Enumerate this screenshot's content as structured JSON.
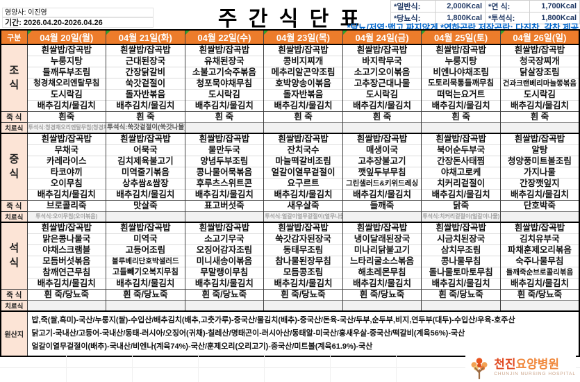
{
  "title": "주 간 식 단 표",
  "meta": {
    "nutritionist": "영양사: 이진영",
    "period": "기간: 2026.04.20-2026.04.26"
  },
  "calories": {
    "row1": {
      "l1": "*일반식:",
      "v1": "2,000Kcal",
      "l2": "*연  식:",
      "v2": "1,700Kcal"
    },
    "row2": {
      "l1": "*당뇨식:",
      "v1": "1,800Kcal",
      "l2": "*투석식:",
      "v2": "1,800Kcal"
    }
  },
  "note": "*당뇨/저염:맵고,짜지않게  *연하곤란,저작곤란: 다진찬, 갈찬 제공",
  "table": {
    "corner_label": "구분",
    "day_headers": [
      "04월 20일(월)",
      "04월 21일(화)",
      "04월 22일(수)",
      "04월 23일(목)",
      "04월 24일(금)",
      "04월 25일(토)",
      "04월 26일(일)"
    ],
    "sections": [
      {
        "id": "breakfast",
        "label": "조식",
        "days": [
          [
            "흰쌀밥/잡곡밥",
            "누룽지탕",
            "들깨두부조림",
            "청경채오리엔탈무침",
            "도시락김",
            "배추김치/물김치"
          ],
          [
            "흰쌀밥/잡곡밥",
            "근대된장국",
            "간장닭갈비",
            "쑥갓겉절이",
            "돌자반볶음",
            "배추김치/물김치"
          ],
          [
            "흰쌀밥/잡곡밥",
            "유채된장국",
            "소불고기숙주볶음",
            "청포묵야채무침",
            "도시락김",
            "배추김치/물김치"
          ],
          [
            "흰쌀밥/잡곡밥",
            "콩비지찌개",
            "메추리알곤약조림",
            "호박양송이볶음",
            "돌자반볶음",
            "배추김치/물김치"
          ],
          [
            "흰쌀밥/잡곡밥",
            "바지락무국",
            "소고기오이볶음",
            "고추장근대나물",
            "도시락김",
            "배추김치/물김치"
          ],
          [
            "흰쌀밥/잡곡밥",
            "누룽지탕",
            "비엔나야채조림",
            "도토리묵통들깨무침",
            "떠먹는요거트",
            "배추김치/물김치"
          ],
          [
            "흰쌀밥/잡곡밥",
            "청국장찌개",
            "닭살장조림",
            "건과크랜베리마늘쫑볶음",
            "도시락김",
            "배추김치/물김치"
          ]
        ],
        "porridge_label": "죽 식",
        "porridge": [
          "흰죽",
          "흰 죽",
          "흰 죽",
          "흰 죽",
          "흰 죽",
          "흰 죽",
          "흰 죽"
        ],
        "treatment_label": "치료식",
        "treatments": [
          {
            "text": "투석식:청경채오리엔탈무침(청경채나물)",
            "strong": false
          },
          {
            "text": "투석식:쑥갓겉절이(쑥갓나물)",
            "strong": true
          },
          {
            "text": "",
            "strong": false
          },
          {
            "text": "",
            "strong": false
          },
          {
            "text": "",
            "strong": false
          },
          {
            "text": "",
            "strong": false
          },
          {
            "text": "",
            "strong": false
          }
        ]
      },
      {
        "id": "lunch",
        "label": "중식",
        "days": [
          [
            "흰쌀밥/잡곡밥",
            "무채국",
            "카레라이스",
            "타코야끼",
            "오이무침",
            "배추김치/물김치"
          ],
          [
            "흰쌀밥/잡곡밥",
            "어묵국",
            "김치제육불고기",
            "미역줄기볶음",
            "상추쌈&쌈장",
            "배추김치/물김치"
          ],
          [
            "흰쌀밥/잡곡밥",
            "물만두국",
            "양념두부조림",
            "콩나물어묵볶음",
            "후루츠스위트콘",
            "배추김치/물김치"
          ],
          [
            "흰쌀밥/잡곡밥",
            "잔치국수",
            "마늘떡갈비조림",
            "얼갈이열무겉절이",
            "요구르트",
            "배추김치/물김치"
          ],
          [
            "흰쌀밥/잡곡밥",
            "매생이국",
            "고추장불고기",
            "깻잎두부무침",
            "그린샐러드&키위드레싱",
            "배추김치/물김치"
          ],
          [
            "흰쌀밥/잡곡밥",
            "북어순두부국",
            "간장돈사태찜",
            "야채고로케",
            "치커리겉절이",
            "배추김치/물김치"
          ],
          [
            "흰쌀밥/잡곡밥",
            "알탕",
            "청양풍미트볼조림",
            "가지나물",
            "간장깻잎지",
            "배추김치/물김치"
          ]
        ],
        "porridge_label": "죽 식",
        "porridge": [
          "브로콜리죽",
          "맛살죽",
          "표고버섯죽",
          "새우살죽",
          "들깨죽",
          "닭죽",
          "단호박죽"
        ],
        "treatment_label": "치료식",
        "treatments": [
          {
            "text": "투석식:오이무침(오이볶음)",
            "strong": false
          },
          {
            "text": "",
            "strong": false
          },
          {
            "text": "",
            "strong": false
          },
          {
            "text": "투석식:얼갈이열무겉절이(열무나물)",
            "strong": false
          },
          {
            "text": "",
            "strong": false
          },
          {
            "text": "투석식:치커리겉절이(얼갈이나물)",
            "strong": false
          },
          {
            "text": "",
            "strong": false
          }
        ]
      },
      {
        "id": "dinner",
        "label": "석식",
        "days": [
          [
            "흰쌀밥/잡곡밥",
            "맑은콩나물국",
            "야채스크램블",
            "모듬버섯볶음",
            "참깨연근무침",
            "배추김치/물김치"
          ],
          [
            "흰쌀밥/잡곡밥",
            "미역국",
            "고등어조림",
            "블루베리단호박샐러드",
            "고들빼기오복지무침",
            "배추김치/물김치"
          ],
          [
            "흰쌀밥/잡곡밥",
            "소고기무국",
            "오징어감자조림",
            "미니새송이볶음",
            "무말랭이무침",
            "배추김치/물김치"
          ],
          [
            "흰쌀밥/잡곡밥",
            "쑥갓감자된장국",
            "동태무조림",
            "참나물된장무침",
            "모듬콩조림",
            "배추김치/물김치"
          ],
          [
            "흰쌀밥/잡곡밥",
            "냉이달래된장국",
            "미나리닭불고기",
            "느타리굴소스볶음",
            "해초레몬무침",
            "배추김치/물김치"
          ],
          [
            "흰쌀밥/잡곡밥",
            "시금치된장국",
            "삼치무조림",
            "콩나물무침",
            "돌나물토마토무침",
            "배추김치/물김치"
          ],
          [
            "흰쌀밥/잡곡밥",
            "김치유부국",
            "파채훈제오리볶음",
            "숙주나물무침",
            "들깨죽순브로콜리볶음",
            "배추김치/물김치"
          ]
        ],
        "porridge_label": "죽 식",
        "porridge": [
          "흰 죽/당뇨죽",
          "흰 죽/당뇨죽",
          "흰 죽/당뇨죽",
          "흰 죽/당뇨죽",
          "흰 죽/당뇨죽",
          "흰 죽/당뇨죽",
          "흰 죽/당뇨죽"
        ],
        "treatment_label": "치료식",
        "treatments": [
          {
            "text": "",
            "strong": false
          },
          {
            "text": "",
            "strong": false
          },
          {
            "text": "",
            "strong": false
          },
          {
            "text": "",
            "strong": false
          },
          {
            "text": "",
            "strong": false
          },
          {
            "text": "",
            "strong": false
          },
          {
            "text": "",
            "strong": false
          }
        ]
      }
    ],
    "origin": {
      "label": "원산지",
      "lines": [
        "밥,죽(쌀,흑미)-국산/누룽지(쌀)-수입산/배추김치(배추,고춧가루)-중국산/물김치(배추)-중국산/돈육-국산/두부,순두부,비지,연두부(대두)-수입산/우육-호주산",
        "닭고기-국내산/고등어-국내산/동태-러시아/오징어(귀채)-칠레산/명태곤이-러시아산/동태알-미국산/홍새우살-중국산/떡갈비(계육56%)-국산",
        "얼갈이열무겉절이(배추)-국내산/비엔나(계육74%)-국산/훈제오리(오리고기)-중국산/미트볼(계육61.9%)-국산"
      ]
    }
  },
  "logo": {
    "name_primary": "천진",
    "name_secondary": "요양병원",
    "subtitle": "CHUNJIN NURSING HOSPITAL"
  },
  "colors": {
    "header_bg": "#ED7C2B",
    "label_bg": "#FCE4D6",
    "note_blue": "#0066CC",
    "calorie_navy": "#1F3864",
    "treatment_gray": "#A0A0A0",
    "marker_green": "#33A02C",
    "logo_orange": "#E0481F",
    "logo_light_orange": "#F0883C"
  }
}
